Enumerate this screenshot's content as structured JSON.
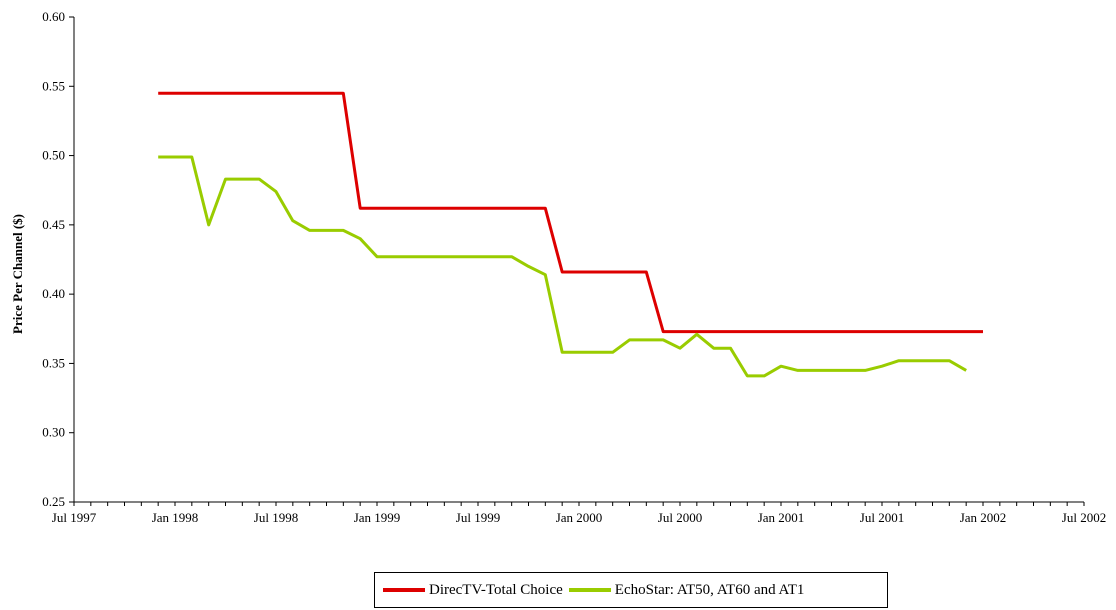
{
  "chart_data": {
    "type": "line",
    "ylabel": "Price Per Channel ($)",
    "xlabel": "",
    "ylim": [
      0.25,
      0.6
    ],
    "y_ticks": [
      "0.25",
      "0.30",
      "0.35",
      "0.40",
      "0.45",
      "0.50",
      "0.55",
      "0.60"
    ],
    "x_range": [
      "1997-07",
      "2002-07"
    ],
    "x_ticks": [
      "Jul 1997",
      "Jan 1998",
      "Jul 1998",
      "Jan 1999",
      "Jul 1999",
      "Jan 2000",
      "Jul 2000",
      "Jan 2001",
      "Jul 2001",
      "Jan 2002",
      "Jul 2002"
    ],
    "grid": false,
    "legend_position": "bottom",
    "series": [
      {
        "name": "DirecTV-Total Choice",
        "color": "#dd0000",
        "points": [
          [
            "1997-12",
            0.545
          ],
          [
            "1998-01",
            0.545
          ],
          [
            "1998-02",
            0.545
          ],
          [
            "1998-03",
            0.545
          ],
          [
            "1998-04",
            0.545
          ],
          [
            "1998-05",
            0.545
          ],
          [
            "1998-06",
            0.545
          ],
          [
            "1998-07",
            0.545
          ],
          [
            "1998-08",
            0.545
          ],
          [
            "1998-09",
            0.545
          ],
          [
            "1998-10",
            0.545
          ],
          [
            "1998-11",
            0.545
          ],
          [
            "1998-12",
            0.462
          ],
          [
            "1999-01",
            0.462
          ],
          [
            "1999-02",
            0.462
          ],
          [
            "1999-03",
            0.462
          ],
          [
            "1999-04",
            0.462
          ],
          [
            "1999-05",
            0.462
          ],
          [
            "1999-06",
            0.462
          ],
          [
            "1999-07",
            0.462
          ],
          [
            "1999-08",
            0.462
          ],
          [
            "1999-09",
            0.462
          ],
          [
            "1999-10",
            0.462
          ],
          [
            "1999-11",
            0.462
          ],
          [
            "1999-12",
            0.416
          ],
          [
            "2000-01",
            0.416
          ],
          [
            "2000-02",
            0.416
          ],
          [
            "2000-03",
            0.416
          ],
          [
            "2000-04",
            0.416
          ],
          [
            "2000-05",
            0.416
          ],
          [
            "2000-06",
            0.373
          ],
          [
            "2000-07",
            0.373
          ],
          [
            "2000-08",
            0.373
          ],
          [
            "2000-09",
            0.373
          ],
          [
            "2000-10",
            0.373
          ],
          [
            "2000-11",
            0.373
          ],
          [
            "2000-12",
            0.373
          ],
          [
            "2001-01",
            0.373
          ],
          [
            "2001-02",
            0.373
          ],
          [
            "2001-03",
            0.373
          ],
          [
            "2001-04",
            0.373
          ],
          [
            "2001-05",
            0.373
          ],
          [
            "2001-06",
            0.373
          ],
          [
            "2001-07",
            0.373
          ],
          [
            "2001-08",
            0.373
          ],
          [
            "2001-09",
            0.373
          ],
          [
            "2001-10",
            0.373
          ],
          [
            "2001-11",
            0.373
          ],
          [
            "2001-12",
            0.373
          ],
          [
            "2002-01",
            0.373
          ]
        ]
      },
      {
        "name": "EchoStar: AT50, AT60 and AT1",
        "color": "#99cc00",
        "points": [
          [
            "1997-12",
            0.499
          ],
          [
            "1998-01",
            0.499
          ],
          [
            "1998-02",
            0.499
          ],
          [
            "1998-03",
            0.45
          ],
          [
            "1998-04",
            0.483
          ],
          [
            "1998-05",
            0.483
          ],
          [
            "1998-06",
            0.483
          ],
          [
            "1998-07",
            0.474
          ],
          [
            "1998-08",
            0.453
          ],
          [
            "1998-09",
            0.446
          ],
          [
            "1998-10",
            0.446
          ],
          [
            "1998-11",
            0.446
          ],
          [
            "1998-12",
            0.44
          ],
          [
            "1999-01",
            0.427
          ],
          [
            "1999-02",
            0.427
          ],
          [
            "1999-03",
            0.427
          ],
          [
            "1999-04",
            0.427
          ],
          [
            "1999-05",
            0.427
          ],
          [
            "1999-06",
            0.427
          ],
          [
            "1999-07",
            0.427
          ],
          [
            "1999-08",
            0.427
          ],
          [
            "1999-09",
            0.427
          ],
          [
            "1999-10",
            0.42
          ],
          [
            "1999-11",
            0.414
          ],
          [
            "1999-12",
            0.358
          ],
          [
            "2000-01",
            0.358
          ],
          [
            "2000-02",
            0.358
          ],
          [
            "2000-03",
            0.358
          ],
          [
            "2000-04",
            0.367
          ],
          [
            "2000-05",
            0.367
          ],
          [
            "2000-06",
            0.367
          ],
          [
            "2000-07",
            0.361
          ],
          [
            "2000-08",
            0.371
          ],
          [
            "2000-09",
            0.361
          ],
          [
            "2000-10",
            0.361
          ],
          [
            "2000-11",
            0.341
          ],
          [
            "2000-12",
            0.341
          ],
          [
            "2001-01",
            0.348
          ],
          [
            "2001-02",
            0.345
          ],
          [
            "2001-03",
            0.345
          ],
          [
            "2001-04",
            0.345
          ],
          [
            "2001-05",
            0.345
          ],
          [
            "2001-06",
            0.345
          ],
          [
            "2001-07",
            0.348
          ],
          [
            "2001-08",
            0.352
          ],
          [
            "2001-09",
            0.352
          ],
          [
            "2001-10",
            0.352
          ],
          [
            "2001-11",
            0.352
          ],
          [
            "2001-12",
            0.345
          ]
        ]
      }
    ]
  }
}
